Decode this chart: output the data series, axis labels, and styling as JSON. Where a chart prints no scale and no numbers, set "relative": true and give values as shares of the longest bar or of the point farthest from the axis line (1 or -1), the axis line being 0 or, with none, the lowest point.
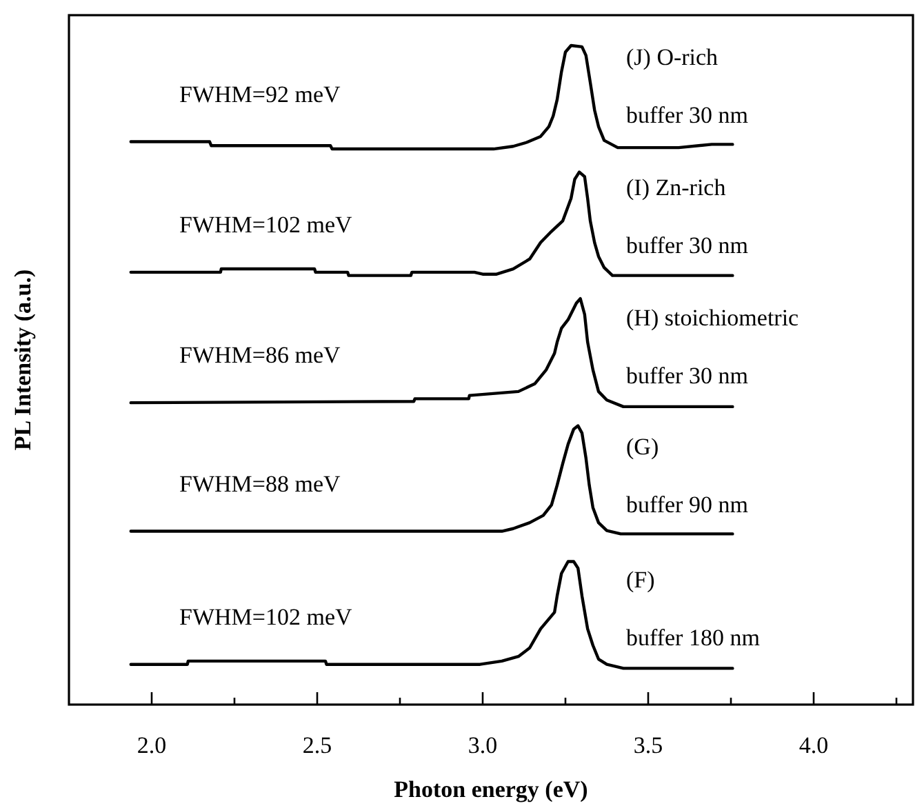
{
  "chart_data": {
    "type": "line",
    "relative": true,
    "xlabel": "Photon energy (eV)",
    "ylabel": "PL Intensity (a.u.)",
    "xlim": [
      1.75,
      4.3
    ],
    "xticks": [
      {
        "value": 2.0,
        "label": "2.0"
      },
      {
        "value": 2.25,
        "label": null
      },
      {
        "value": 2.5,
        "label": "2.5"
      },
      {
        "value": 2.75,
        "label": null
      },
      {
        "value": 3.0,
        "label": "3.0"
      },
      {
        "value": 3.25,
        "label": null
      },
      {
        "value": 3.5,
        "label": "3.5"
      },
      {
        "value": 3.75,
        "label": null
      },
      {
        "value": 4.0,
        "label": "4.0"
      },
      {
        "value": 4.25,
        "label": null
      }
    ],
    "series": [
      {
        "color": "#000000",
        "x": [
          1.937,
          2.175,
          2.18,
          2.54,
          2.545,
          3.033,
          3.092,
          3.133,
          3.175,
          3.2,
          3.213,
          3.225,
          3.238,
          3.25,
          3.267,
          3.3,
          3.312,
          3.325,
          3.338,
          3.35,
          3.367,
          3.408,
          3.592,
          3.692,
          3.755
        ],
        "values": [
          0.854,
          0.854,
          0.848,
          0.848,
          0.843,
          0.843,
          0.847,
          0.853,
          0.862,
          0.877,
          0.893,
          0.918,
          0.96,
          0.99,
          1.0,
          0.998,
          0.985,
          0.944,
          0.902,
          0.877,
          0.856,
          0.845,
          0.845,
          0.85,
          0.85
        ]
      },
      {
        "color": "#000000",
        "x": [
          1.937,
          2.208,
          2.21,
          2.492,
          2.495,
          2.592,
          2.595,
          2.783,
          2.786,
          2.975,
          3.0,
          3.042,
          3.092,
          3.142,
          3.175,
          3.208,
          3.242,
          3.267,
          3.278,
          3.292,
          3.308,
          3.317,
          3.325,
          3.338,
          3.35,
          3.367,
          3.392,
          3.755
        ],
        "values": [
          0.656,
          0.656,
          0.661,
          0.661,
          0.656,
          0.656,
          0.651,
          0.651,
          0.656,
          0.656,
          0.653,
          0.653,
          0.661,
          0.676,
          0.701,
          0.718,
          0.734,
          0.768,
          0.797,
          0.808,
          0.801,
          0.768,
          0.734,
          0.701,
          0.68,
          0.663,
          0.651,
          0.651
        ]
      },
      {
        "color": "#000000",
        "x": [
          1.937,
          2.792,
          2.795,
          2.958,
          2.96,
          3.108,
          3.158,
          3.192,
          3.217,
          3.225,
          3.238,
          3.258,
          3.283,
          3.295,
          3.308,
          3.317,
          3.333,
          3.35,
          3.375,
          3.425,
          3.755
        ],
        "values": [
          0.458,
          0.46,
          0.464,
          0.464,
          0.469,
          0.475,
          0.487,
          0.508,
          0.533,
          0.55,
          0.571,
          0.584,
          0.609,
          0.616,
          0.592,
          0.55,
          0.508,
          0.475,
          0.462,
          0.452,
          0.452
        ]
      },
      {
        "color": "#000000",
        "x": [
          1.937,
          3.058,
          3.092,
          3.142,
          3.183,
          3.208,
          3.225,
          3.242,
          3.258,
          3.275,
          3.288,
          3.3,
          3.312,
          3.322,
          3.333,
          3.35,
          3.375,
          3.417,
          3.755
        ],
        "values": [
          0.263,
          0.263,
          0.267,
          0.276,
          0.287,
          0.303,
          0.333,
          0.366,
          0.395,
          0.418,
          0.423,
          0.412,
          0.374,
          0.333,
          0.299,
          0.276,
          0.264,
          0.259,
          0.259
        ]
      },
      {
        "color": "#000000",
        "x": [
          1.937,
          2.108,
          2.11,
          2.525,
          2.528,
          2.992,
          3.058,
          3.108,
          3.142,
          3.175,
          3.217,
          3.225,
          3.238,
          3.258,
          3.275,
          3.288,
          3.3,
          3.317,
          3.333,
          3.35,
          3.375,
          3.425,
          3.755
        ],
        "values": [
          0.061,
          0.061,
          0.066,
          0.066,
          0.061,
          0.061,
          0.066,
          0.073,
          0.086,
          0.115,
          0.14,
          0.165,
          0.199,
          0.217,
          0.217,
          0.207,
          0.165,
          0.115,
          0.09,
          0.069,
          0.061,
          0.055,
          0.055
        ]
      }
    ],
    "annotations": [
      "FWHM=92 meV",
      "(J) O-rich",
      "buffer 30 nm",
      "FWHM=102 meV",
      "(I) Zn-rich",
      "buffer 30 nm",
      "FWHM=86 meV",
      "(H) stoichiometric",
      "buffer 30 nm",
      "FWHM=88 meV",
      "(G)",
      "buffer 90 nm",
      "FWHM=102 meV",
      "(F)",
      "buffer 180 nm"
    ]
  }
}
